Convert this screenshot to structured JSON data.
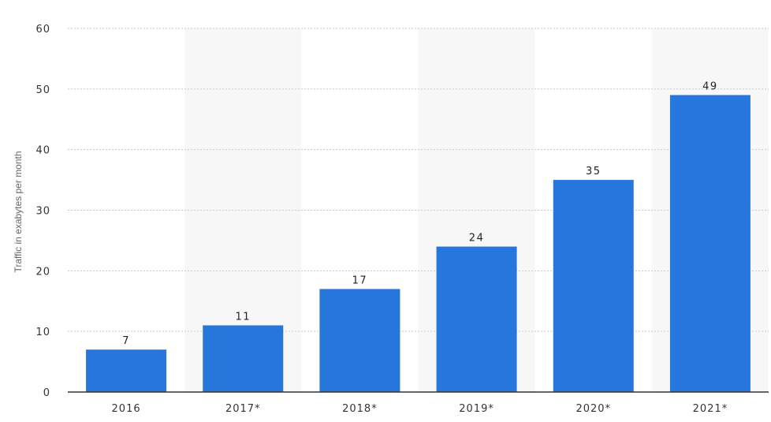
{
  "chart_data": {
    "type": "bar",
    "categories": [
      "2016",
      "2017*",
      "2018*",
      "2019*",
      "2020*",
      "2021*"
    ],
    "values": [
      7,
      11,
      17,
      24,
      35,
      49
    ],
    "data_labels": [
      "7",
      "11",
      "17",
      "24",
      "35",
      "49"
    ],
    "title": "",
    "xlabel": "",
    "ylabel": "Traffic in exabytes per month",
    "ylim": [
      0,
      60
    ],
    "yticks": [
      "0",
      "10",
      "20",
      "30",
      "40",
      "50",
      "60"
    ],
    "grid": true,
    "alternating_column_shading": true,
    "colors": {
      "bar": "#2776db",
      "band": "#f7f7f7",
      "grid": "#c8c8c8",
      "axis": "#333333"
    }
  }
}
